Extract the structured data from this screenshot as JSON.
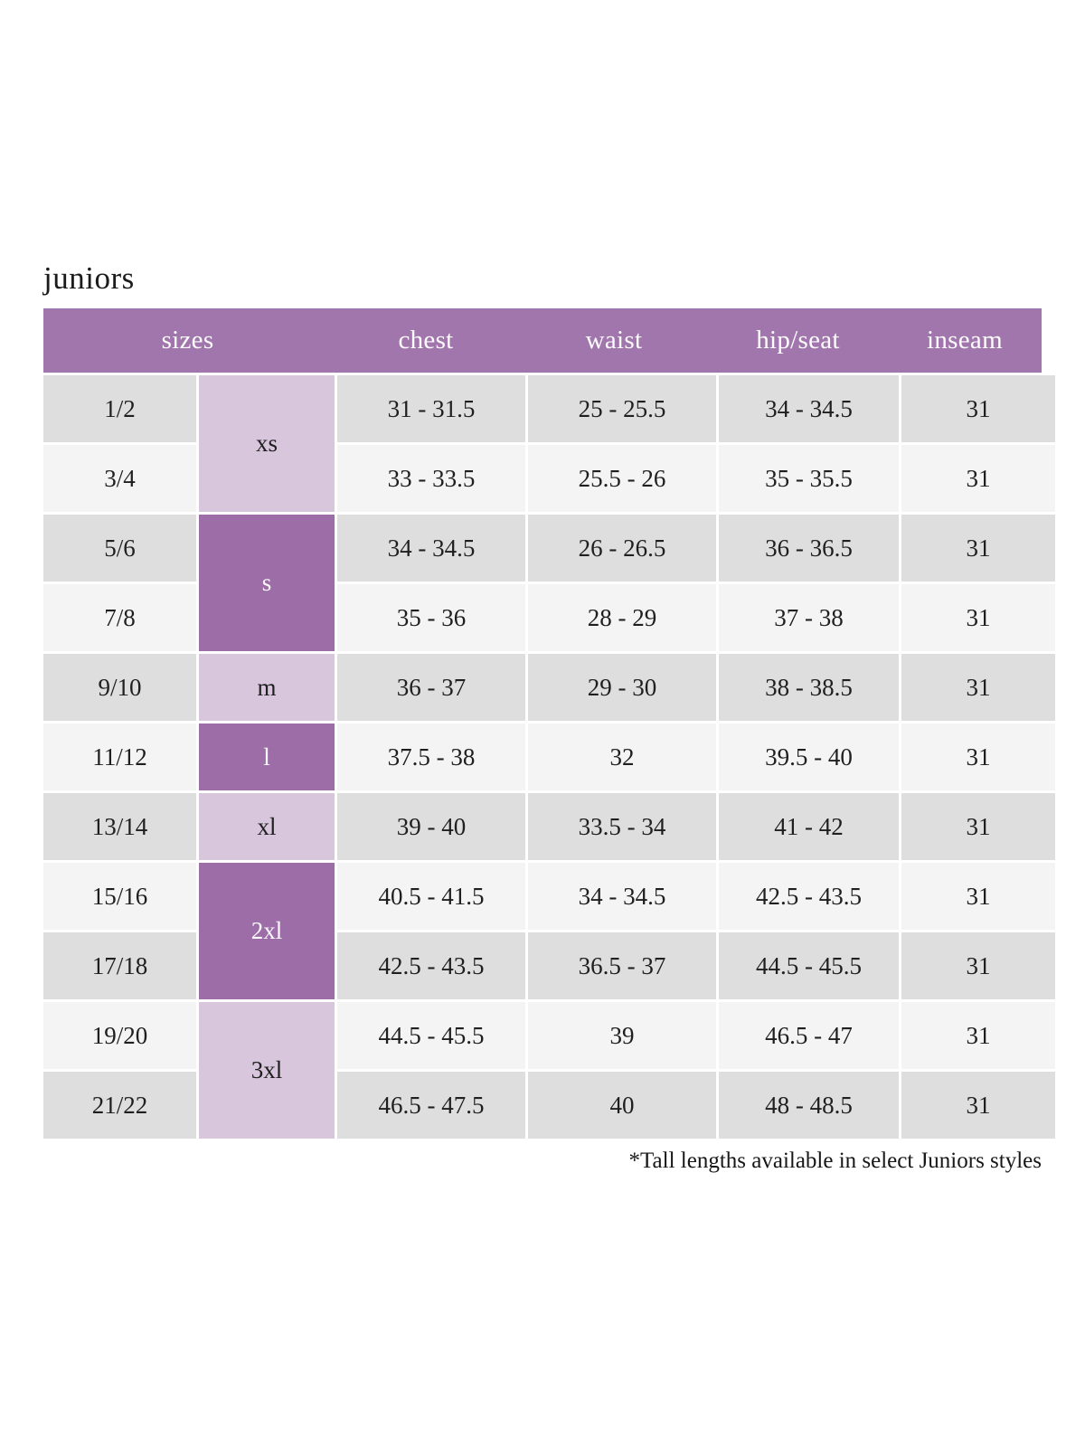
{
  "page": {
    "title": "juniors",
    "footnote": "*Tall lengths available in select Juniors styles"
  },
  "table": {
    "columns": [
      "sizes",
      "chest",
      "waist",
      "hip/seat",
      "inseam"
    ],
    "size_groups": [
      {
        "label": "xs",
        "rows_spanned": 2,
        "shade": "light"
      },
      {
        "label": "s",
        "rows_spanned": 2,
        "shade": "dark"
      },
      {
        "label": "m",
        "rows_spanned": 1,
        "shade": "light"
      },
      {
        "label": "l",
        "rows_spanned": 1,
        "shade": "dark"
      },
      {
        "label": "xl",
        "rows_spanned": 1,
        "shade": "light"
      },
      {
        "label": "2xl",
        "rows_spanned": 2,
        "shade": "dark"
      },
      {
        "label": "3xl",
        "rows_spanned": 2,
        "shade": "light"
      }
    ],
    "rows": [
      {
        "size": "1/2",
        "chest": "31 - 31.5",
        "waist": "25 - 25.5",
        "hip_seat": "34 - 34.5",
        "inseam": "31"
      },
      {
        "size": "3/4",
        "chest": "33 - 33.5",
        "waist": "25.5 - 26",
        "hip_seat": "35 - 35.5",
        "inseam": "31"
      },
      {
        "size": "5/6",
        "chest": "34 - 34.5",
        "waist": "26 - 26.5",
        "hip_seat": "36 - 36.5",
        "inseam": "31"
      },
      {
        "size": "7/8",
        "chest": "35 - 36",
        "waist": "28 - 29",
        "hip_seat": "37 - 38",
        "inseam": "31"
      },
      {
        "size": "9/10",
        "chest": "36 - 37",
        "waist": "29 - 30",
        "hip_seat": "38 - 38.5",
        "inseam": "31"
      },
      {
        "size": "11/12",
        "chest": "37.5 - 38",
        "waist": "32",
        "hip_seat": "39.5 - 40",
        "inseam": "31"
      },
      {
        "size": "13/14",
        "chest": "39 - 40",
        "waist": "33.5 - 34",
        "hip_seat": "41 - 42",
        "inseam": "31"
      },
      {
        "size": "15/16",
        "chest": "40.5 - 41.5",
        "waist": "34 - 34.5",
        "hip_seat": "42.5 - 43.5",
        "inseam": "31"
      },
      {
        "size": "17/18",
        "chest": "42.5 - 43.5",
        "waist": "36.5 - 37",
        "hip_seat": "44.5 - 45.5",
        "inseam": "31"
      },
      {
        "size": "19/20",
        "chest": "44.5 - 45.5",
        "waist": "39",
        "hip_seat": "46.5 - 47",
        "inseam": "31"
      },
      {
        "size": "21/22",
        "chest": "46.5 - 47.5",
        "waist": "40",
        "hip_seat": "48 - 48.5",
        "inseam": "31"
      }
    ],
    "colors": {
      "header_bg": "#a176ad",
      "header_text": "#fdfcfd",
      "letter_cell_dark_bg": "#9c6da6",
      "letter_cell_dark_text": "#fbf8fc",
      "letter_cell_light_bg": "#d8c6dd",
      "row_gray_bg": "#dedede",
      "row_light_bg": "#f4f4f4",
      "body_text": "#1f1f1f"
    }
  }
}
